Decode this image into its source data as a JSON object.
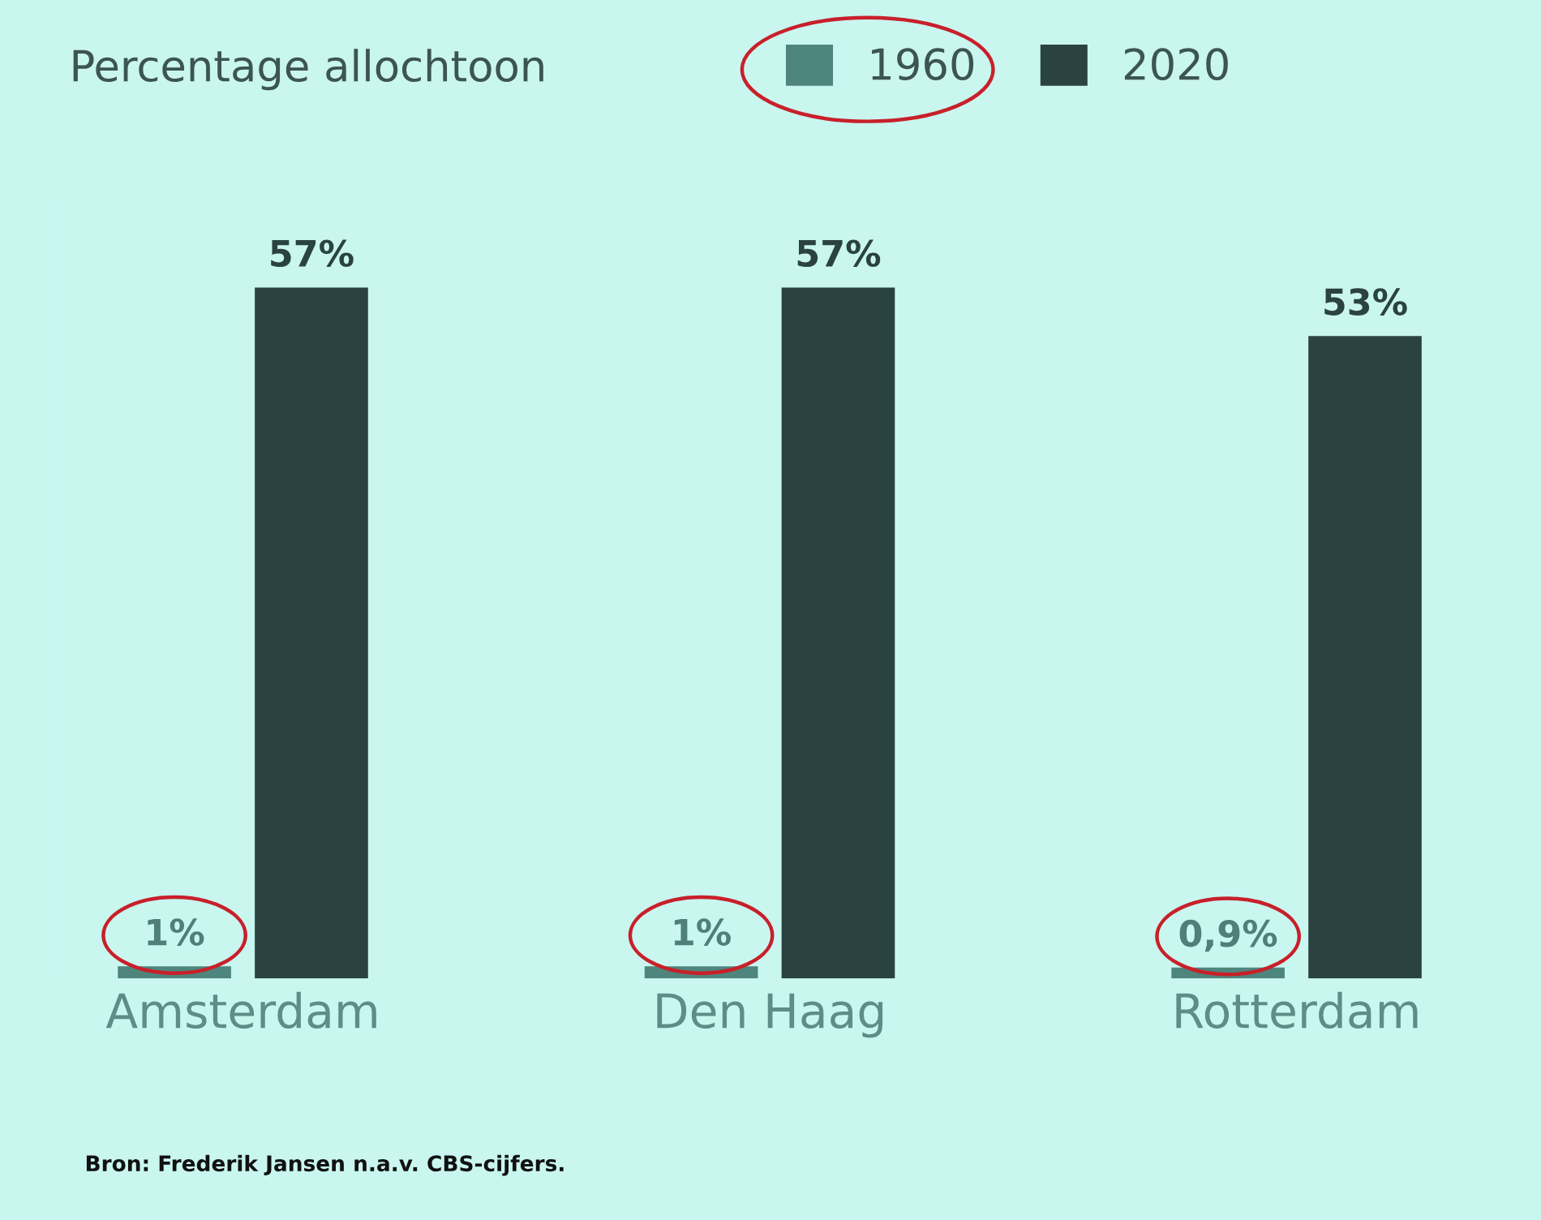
{
  "chart_data": {
    "type": "bar",
    "legend_title": "Percentage allochtoon",
    "legend": "top",
    "categories": [
      "Amsterdam",
      "Den Haag",
      "Rotterdam"
    ],
    "series": [
      {
        "name": "1960",
        "color": "#4e857d",
        "values": [
          1,
          1,
          0.9
        ],
        "value_labels": [
          "1%",
          "1%",
          "0,9%"
        ]
      },
      {
        "name": "2020",
        "color": "#2b4340",
        "values": [
          57,
          57,
          53
        ],
        "value_labels": [
          "57%",
          "57%",
          "53%"
        ]
      }
    ],
    "annotations": [
      "Bron: Frederik Jansen n.a.v. CBS-cijfers."
    ]
  }
}
